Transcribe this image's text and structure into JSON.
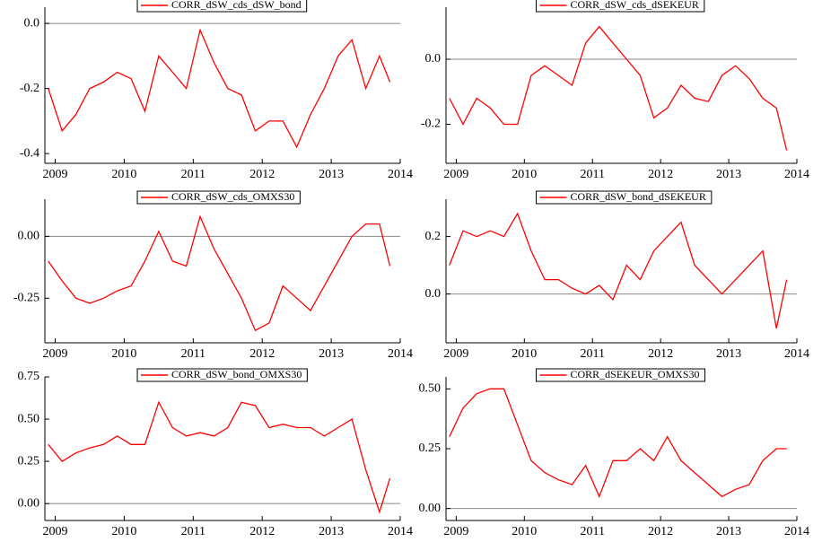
{
  "chart_data": [
    {
      "type": "line",
      "series": [
        {
          "name": "CORR_dSW_cds_dSW_bond",
          "color": "#ff0000",
          "values": [
            -0.2,
            -0.33,
            -0.28,
            -0.2,
            -0.18,
            -0.15,
            -0.17,
            -0.27,
            -0.1,
            -0.15,
            -0.2,
            -0.02,
            -0.12,
            -0.2,
            -0.22,
            -0.33,
            -0.3,
            -0.3,
            -0.38,
            -0.28,
            -0.2,
            -0.1,
            -0.05,
            -0.2,
            -0.1,
            -0.18
          ]
        }
      ],
      "x": [
        2008.9,
        2009.1,
        2009.3,
        2009.5,
        2009.7,
        2009.9,
        2010.1,
        2010.3,
        2010.5,
        2010.7,
        2010.9,
        2011.1,
        2011.3,
        2011.5,
        2011.7,
        2011.9,
        2012.1,
        2012.3,
        2012.5,
        2012.7,
        2012.9,
        2013.1,
        2013.3,
        2013.5,
        2013.7,
        2013.85
      ],
      "xlim": [
        2008.85,
        2014
      ],
      "xticks": [
        2009,
        2010,
        2011,
        2012,
        2013,
        2014
      ],
      "ylim": [
        -0.43,
        0.05
      ],
      "yticks": [
        -0.4,
        -0.2,
        {
          "value": 0,
          "label": "0.0"
        }
      ],
      "hline": 0
    },
    {
      "type": "line",
      "series": [
        {
          "name": "CORR_dSW_cds_dSEKEUR",
          "color": "#ff0000",
          "values": [
            -0.12,
            -0.2,
            -0.12,
            -0.15,
            -0.2,
            -0.2,
            -0.05,
            -0.02,
            -0.05,
            -0.08,
            0.05,
            0.1,
            0.05,
            0.0,
            -0.05,
            -0.18,
            -0.15,
            -0.08,
            -0.12,
            -0.13,
            -0.05,
            -0.02,
            -0.06,
            -0.12,
            -0.15,
            -0.28
          ]
        }
      ],
      "x": [
        2008.9,
        2009.1,
        2009.3,
        2009.5,
        2009.7,
        2009.9,
        2010.1,
        2010.3,
        2010.5,
        2010.7,
        2010.9,
        2011.1,
        2011.3,
        2011.5,
        2011.7,
        2011.9,
        2012.1,
        2012.3,
        2012.5,
        2012.7,
        2012.9,
        2013.1,
        2013.3,
        2013.5,
        2013.7,
        2013.85
      ],
      "xlim": [
        2008.85,
        2014
      ],
      "xticks": [
        2009,
        2010,
        2011,
        2012,
        2013,
        2014
      ],
      "ylim": [
        -0.32,
        0.16
      ],
      "yticks": [
        -0.2,
        {
          "value": 0,
          "label": "0.0"
        }
      ],
      "hline": 0
    },
    {
      "type": "line",
      "series": [
        {
          "name": "CORR_dSW_cds_OMXS30",
          "color": "#ff0000",
          "values": [
            -0.1,
            -0.18,
            -0.25,
            -0.27,
            -0.25,
            -0.22,
            -0.2,
            -0.1,
            0.02,
            -0.1,
            -0.12,
            0.08,
            -0.05,
            -0.15,
            -0.25,
            -0.38,
            -0.35,
            -0.2,
            -0.25,
            -0.3,
            -0.2,
            -0.1,
            0.0,
            0.05,
            0.05,
            -0.12
          ]
        }
      ],
      "x": [
        2008.9,
        2009.1,
        2009.3,
        2009.5,
        2009.7,
        2009.9,
        2010.1,
        2010.3,
        2010.5,
        2010.7,
        2010.9,
        2011.1,
        2011.3,
        2011.5,
        2011.7,
        2011.9,
        2012.1,
        2012.3,
        2012.5,
        2012.7,
        2012.9,
        2013.1,
        2013.3,
        2013.5,
        2013.7,
        2013.85
      ],
      "xlim": [
        2008.85,
        2014
      ],
      "xticks": [
        2009,
        2010,
        2011,
        2012,
        2013,
        2014
      ],
      "ylim": [
        -0.43,
        0.15
      ],
      "yticks": [
        -0.25,
        {
          "value": 0,
          "label": "0.00"
        }
      ],
      "hline": 0
    },
    {
      "type": "line",
      "series": [
        {
          "name": "CORR_dSW_bond_dSEKEUR",
          "color": "#ff0000",
          "values": [
            0.1,
            0.22,
            0.2,
            0.22,
            0.2,
            0.28,
            0.15,
            0.05,
            0.05,
            0.02,
            0.0,
            0.03,
            -0.02,
            0.1,
            0.05,
            0.15,
            0.2,
            0.25,
            0.1,
            0.05,
            0.0,
            0.05,
            0.1,
            0.15,
            -0.12,
            0.05
          ]
        }
      ],
      "x": [
        2008.9,
        2009.1,
        2009.3,
        2009.5,
        2009.7,
        2009.9,
        2010.1,
        2010.3,
        2010.5,
        2010.7,
        2010.9,
        2011.1,
        2011.3,
        2011.5,
        2011.7,
        2011.9,
        2012.1,
        2012.3,
        2012.5,
        2012.7,
        2012.9,
        2013.1,
        2013.3,
        2013.5,
        2013.7,
        2013.85
      ],
      "xlim": [
        2008.85,
        2014
      ],
      "xticks": [
        2009,
        2010,
        2011,
        2012,
        2013,
        2014
      ],
      "ylim": [
        -0.17,
        0.33
      ],
      "yticks": [
        {
          "value": 0,
          "label": "0.0"
        },
        0.2
      ],
      "hline": 0
    },
    {
      "type": "line",
      "series": [
        {
          "name": "CORR_dSW_bond_OMXS30",
          "color": "#ff0000",
          "values": [
            0.35,
            0.25,
            0.3,
            0.33,
            0.35,
            0.4,
            0.35,
            0.35,
            0.6,
            0.45,
            0.4,
            0.42,
            0.4,
            0.45,
            0.6,
            0.58,
            0.45,
            0.47,
            0.45,
            0.45,
            0.4,
            0.45,
            0.5,
            0.2,
            -0.05,
            0.15
          ]
        }
      ],
      "x": [
        2008.9,
        2009.1,
        2009.3,
        2009.5,
        2009.7,
        2009.9,
        2010.1,
        2010.3,
        2010.5,
        2010.7,
        2010.9,
        2011.1,
        2011.3,
        2011.5,
        2011.7,
        2011.9,
        2012.1,
        2012.3,
        2012.5,
        2012.7,
        2012.9,
        2013.1,
        2013.3,
        2013.5,
        2013.7,
        2013.85
      ],
      "xlim": [
        2008.85,
        2014
      ],
      "xticks": [
        2009,
        2010,
        2011,
        2012,
        2013,
        2014
      ],
      "ylim": [
        -0.1,
        0.75
      ],
      "yticks": [
        {
          "value": 0,
          "label": "0.00"
        },
        0.25,
        {
          "value": 0.5,
          "label": "0.50"
        },
        0.75
      ],
      "hline": 0
    },
    {
      "type": "line",
      "series": [
        {
          "name": "CORR_dSEKEUR_OMXS30",
          "color": "#ff0000",
          "values": [
            0.3,
            0.42,
            0.48,
            0.5,
            0.5,
            0.35,
            0.2,
            0.15,
            0.12,
            0.1,
            0.18,
            0.05,
            0.2,
            0.2,
            0.25,
            0.2,
            0.3,
            0.2,
            0.15,
            0.1,
            0.05,
            0.08,
            0.1,
            0.2,
            0.25,
            0.25
          ]
        }
      ],
      "x": [
        2008.9,
        2009.1,
        2009.3,
        2009.5,
        2009.7,
        2009.9,
        2010.1,
        2010.3,
        2010.5,
        2010.7,
        2010.9,
        2011.1,
        2011.3,
        2011.5,
        2011.7,
        2011.9,
        2012.1,
        2012.3,
        2012.5,
        2012.7,
        2012.9,
        2013.1,
        2013.3,
        2013.5,
        2013.7,
        2013.85
      ],
      "xlim": [
        2008.85,
        2014
      ],
      "xticks": [
        2009,
        2010,
        2011,
        2012,
        2013,
        2014
      ],
      "ylim": [
        -0.05,
        0.55
      ],
      "yticks": [
        {
          "value": 0,
          "label": "0.00"
        },
        0.25,
        {
          "value": 0.5,
          "label": "0.50"
        }
      ],
      "hline": 0
    }
  ]
}
